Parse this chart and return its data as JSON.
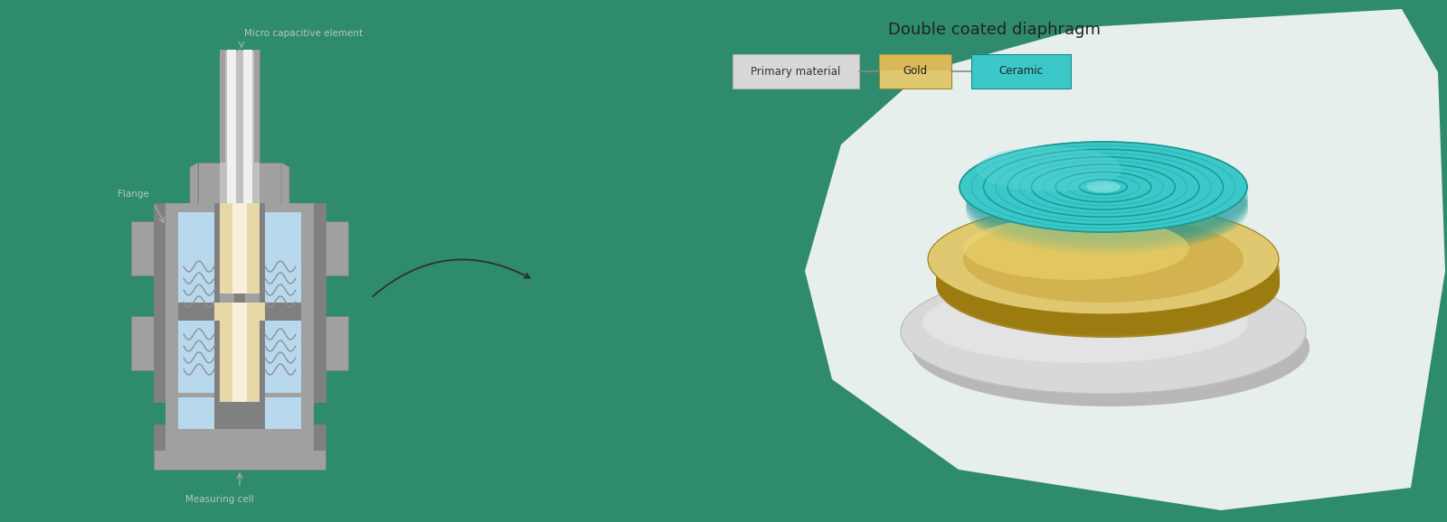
{
  "bg_color": "#2e8b6e",
  "title": "Double coated diaphragm",
  "title_fontsize": 13,
  "title_color": "#222222",
  "annotation_micro": "Micro capacitive element",
  "annotation_flange": "Flange",
  "annotation_measuring": "Measuring cell",
  "sensor_body_dark": "#808080",
  "sensor_body_mid": "#a0a0a0",
  "sensor_body_light": "#c0c0c0",
  "sensor_blue": "#b8d8ee",
  "sensor_gold": "#e8d8a8",
  "sensor_white": "#f0f0f0",
  "teal_color": "#3cc8c8",
  "teal_dark": "#1a9898",
  "teal_light": "#70dede",
  "gold_color": "#c8a832",
  "gold_light": "#e0c870",
  "gold_dark": "#9c7c10",
  "gray_base": "#d0d0d0",
  "gray_mid": "#b8b8b8",
  "gray_dark": "#989898",
  "white_bg": "#f8f8f8"
}
